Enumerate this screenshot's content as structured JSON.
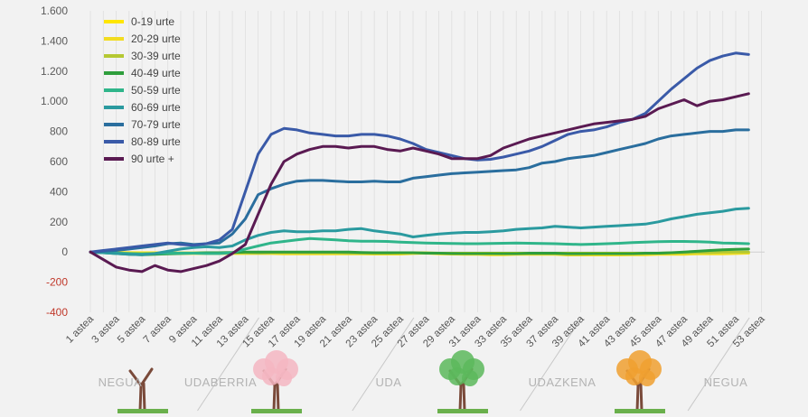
{
  "chart_data": {
    "type": "line",
    "title": "",
    "xlabel": "",
    "ylabel": "",
    "ylim": [
      -400,
      1600
    ],
    "y_ticks": [
      {
        "value": 1600,
        "label": "1.600"
      },
      {
        "value": 1400,
        "label": "1.400"
      },
      {
        "value": 1200,
        "label": "1.200"
      },
      {
        "value": 1000,
        "label": "1.000"
      },
      {
        "value": 800,
        "label": "800"
      },
      {
        "value": 600,
        "label": "600"
      },
      {
        "value": 400,
        "label": "400"
      },
      {
        "value": 200,
        "label": "200"
      },
      {
        "value": 0,
        "label": "0"
      },
      {
        "value": -200,
        "label": "-200"
      },
      {
        "value": -400,
        "label": "-400"
      }
    ],
    "grid": true,
    "legend_position": "top-left",
    "x": [
      1,
      2,
      3,
      4,
      5,
      6,
      7,
      8,
      9,
      10,
      11,
      12,
      13,
      14,
      15,
      16,
      17,
      18,
      19,
      20,
      21,
      22,
      23,
      24,
      25,
      26,
      27,
      28,
      29,
      30,
      31,
      32,
      33,
      34,
      35,
      36,
      37,
      38,
      39,
      40,
      41,
      42,
      43,
      44,
      45,
      46,
      47,
      48,
      49,
      50,
      51,
      52
    ],
    "x_tick_labels": [
      "1 astea",
      "3 astea",
      "5 astea",
      "7 astea",
      "9 astea",
      "11 astea",
      "13 astea",
      "15 astea",
      "17 astea",
      "19 astea",
      "21 astea",
      "23 astea",
      "25 astea",
      "27 astea",
      "29 astea",
      "31 astea",
      "33 astea",
      "35 astea",
      "37 astea",
      "39 astea",
      "41 astea",
      "43 astea",
      "45 astea",
      "47 astea",
      "49 astea",
      "51 astea",
      "53 astea"
    ],
    "seasons": [
      {
        "label": "NEGUA"
      },
      {
        "label": "UDABERRIA"
      },
      {
        "label": "UDA"
      },
      {
        "label": "UDAZKENA"
      },
      {
        "label": "NEGUA"
      }
    ],
    "series": [
      {
        "name": "0-19 urte",
        "color": "#ffe600",
        "values": [
          0,
          -2,
          -3,
          -4,
          -5,
          -5,
          -6,
          -6,
          -6,
          -6,
          -6,
          -7,
          -8,
          -8,
          -8,
          -8,
          -8,
          -8,
          -8,
          -8,
          -8,
          -8,
          -8,
          -8,
          -8,
          -8,
          -8,
          -8,
          -8,
          -8,
          -8,
          -8,
          -8,
          -8,
          -8,
          -8,
          -8,
          -8,
          -8,
          -8,
          -8,
          -8,
          -8,
          -8,
          -8,
          -8,
          -8,
          -8,
          -8,
          -8,
          -8,
          -8
        ]
      },
      {
        "name": "20-29 urte",
        "color": "#f2dc20",
        "values": [
          0,
          -3,
          -5,
          -8,
          -10,
          -10,
          -10,
          -10,
          -10,
          -10,
          -10,
          -10,
          -10,
          -10,
          -10,
          -12,
          -12,
          -12,
          -12,
          -12,
          -12,
          -12,
          -14,
          -14,
          -14,
          -10,
          -8,
          -12,
          -14,
          -15,
          -15,
          -18,
          -18,
          -15,
          -15,
          -15,
          -15,
          -20,
          -20,
          -20,
          -20,
          -20,
          -18,
          -18,
          -15,
          -15,
          -15,
          -12,
          -12,
          -12,
          -10,
          -8
        ]
      },
      {
        "name": "30-39 urte",
        "color": "#b5c832",
        "values": [
          0,
          -3,
          -6,
          -10,
          -12,
          -10,
          -8,
          -6,
          -6,
          -5,
          -5,
          -5,
          -5,
          -8,
          -5,
          -3,
          -5,
          -5,
          -5,
          -5,
          -8,
          -8,
          -8,
          -8,
          -5,
          -5,
          -5,
          -8,
          -8,
          -10,
          -10,
          -10,
          -12,
          -12,
          -12,
          -12,
          -12,
          -15,
          -15,
          -12,
          -12,
          -12,
          -12,
          -10,
          -8,
          -5,
          -5,
          -3,
          -3,
          0,
          0,
          0
        ]
      },
      {
        "name": "40-49 urte",
        "color": "#2e9e3c",
        "values": [
          0,
          -5,
          -10,
          -15,
          -18,
          -15,
          -12,
          -10,
          -8,
          -5,
          -5,
          -3,
          0,
          0,
          0,
          0,
          0,
          0,
          0,
          0,
          0,
          -3,
          -5,
          -5,
          -5,
          -5,
          -8,
          -8,
          -10,
          -10,
          -10,
          -10,
          -10,
          -10,
          -8,
          -8,
          -8,
          -10,
          -10,
          -10,
          -10,
          -10,
          -10,
          -8,
          -8,
          -5,
          0,
          5,
          10,
          15,
          18,
          20
        ]
      },
      {
        "name": "50-59 urte",
        "color": "#2fb58a",
        "values": [
          0,
          -5,
          -8,
          -10,
          -12,
          -10,
          -8,
          -8,
          -8,
          -10,
          -10,
          -5,
          20,
          40,
          60,
          70,
          80,
          90,
          85,
          80,
          75,
          72,
          72,
          70,
          65,
          62,
          60,
          58,
          56,
          55,
          55,
          56,
          58,
          60,
          58,
          56,
          55,
          52,
          50,
          52,
          55,
          58,
          62,
          66,
          68,
          70,
          70,
          68,
          65,
          60,
          58,
          55
        ]
      },
      {
        "name": "60-69 urte",
        "color": "#2a9a9f",
        "values": [
          0,
          -5,
          -10,
          -15,
          -18,
          -10,
          5,
          20,
          30,
          35,
          30,
          40,
          80,
          110,
          130,
          140,
          135,
          135,
          140,
          140,
          150,
          155,
          140,
          130,
          120,
          100,
          110,
          120,
          125,
          130,
          130,
          135,
          140,
          150,
          155,
          160,
          170,
          165,
          160,
          165,
          170,
          175,
          180,
          185,
          200,
          220,
          235,
          250,
          260,
          270,
          285,
          290
        ]
      },
      {
        "name": "70-79 urte",
        "color": "#2a6e9e",
        "values": [
          0,
          5,
          10,
          20,
          30,
          40,
          55,
          60,
          50,
          55,
          60,
          120,
          220,
          380,
          420,
          450,
          470,
          475,
          475,
          470,
          465,
          465,
          470,
          465,
          465,
          490,
          500,
          510,
          520,
          525,
          530,
          535,
          540,
          545,
          560,
          590,
          600,
          620,
          630,
          640,
          660,
          680,
          700,
          720,
          750,
          770,
          780,
          790,
          800,
          800,
          810,
          810
        ]
      },
      {
        "name": "80-89 urte",
        "color": "#3a5aa8",
        "values": [
          0,
          10,
          20,
          30,
          40,
          50,
          60,
          50,
          45,
          55,
          80,
          150,
          400,
          650,
          780,
          820,
          810,
          790,
          780,
          770,
          770,
          780,
          780,
          770,
          750,
          720,
          680,
          660,
          640,
          620,
          610,
          615,
          630,
          650,
          670,
          700,
          740,
          780,
          800,
          810,
          830,
          860,
          880,
          920,
          1000,
          1080,
          1150,
          1220,
          1270,
          1300,
          1320,
          1310
        ]
      },
      {
        "name": "90 urte +",
        "color": "#5a1a52",
        "values": [
          0,
          -50,
          -100,
          -120,
          -130,
          -90,
          -120,
          -130,
          -110,
          -90,
          -60,
          -10,
          50,
          250,
          450,
          600,
          650,
          680,
          700,
          700,
          690,
          700,
          700,
          680,
          670,
          690,
          670,
          650,
          620,
          620,
          620,
          640,
          690,
          720,
          750,
          770,
          790,
          810,
          830,
          850,
          860,
          870,
          880,
          900,
          950,
          980,
          1010,
          970,
          1000,
          1010,
          1030,
          1050
        ]
      }
    ]
  }
}
